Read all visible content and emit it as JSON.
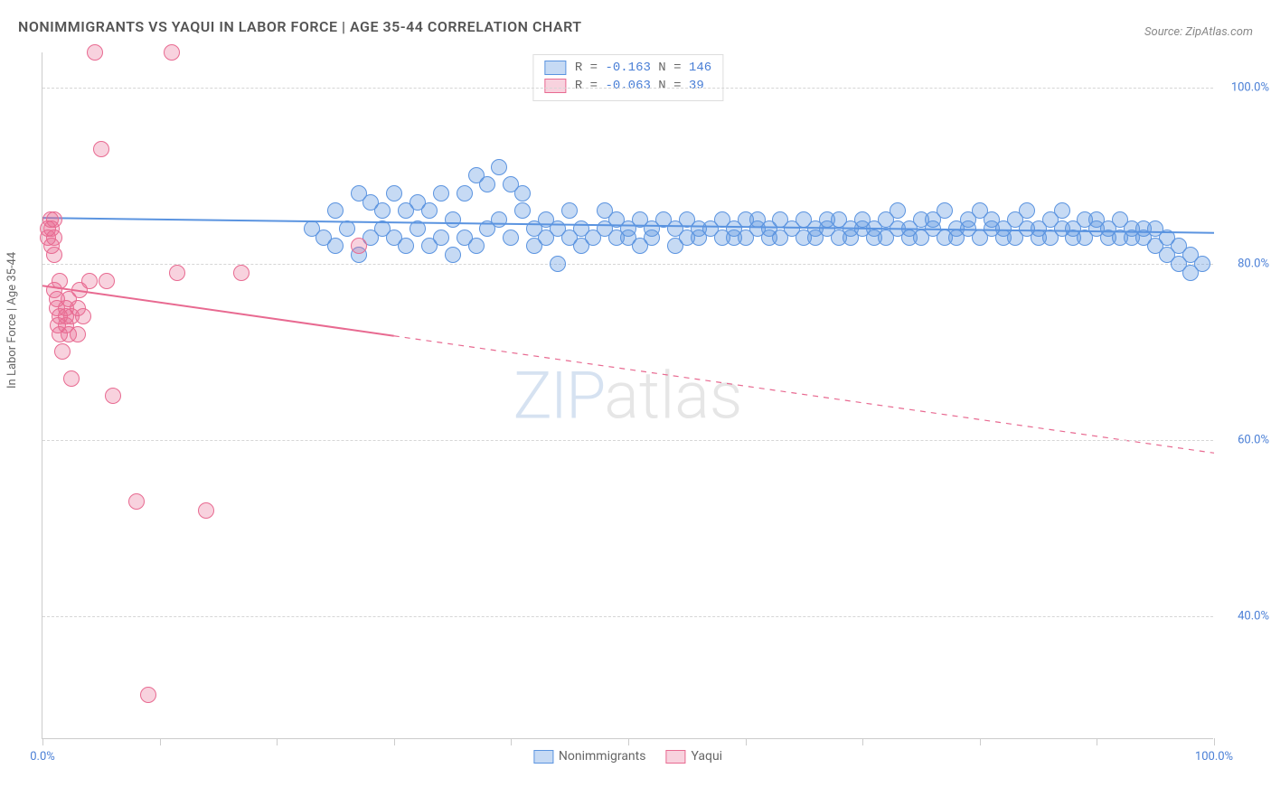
{
  "title": "NONIMMIGRANTS VS YAQUI IN LABOR FORCE | AGE 35-44 CORRELATION CHART",
  "source": "Source: ZipAtlas.com",
  "ylabel": "In Labor Force | Age 35-44",
  "watermark_part1": "ZIP",
  "watermark_part2": "atlas",
  "chart": {
    "type": "scatter",
    "background_color": "#ffffff",
    "grid_color": "#d6d6d6",
    "axis_color": "#cccccc",
    "tick_label_color": "#4a7fd6",
    "label_fontsize": 13,
    "title_fontsize": 16,
    "xlim": [
      0,
      100
    ],
    "ylim": [
      26,
      104
    ],
    "xtick_positions": [
      0,
      10,
      20,
      30,
      40,
      50,
      60,
      70,
      80,
      90,
      100
    ],
    "xtick_labels": {
      "0": "0.0%",
      "100": "100.0%"
    },
    "yticks": [
      {
        "value": 40,
        "label": "40.0%"
      },
      {
        "value": 60,
        "label": "60.0%"
      },
      {
        "value": 80,
        "label": "80.0%"
      },
      {
        "value": 100,
        "label": "100.0%"
      }
    ],
    "marker_radius": 9,
    "marker_stroke_width": 1.5,
    "marker_fill_opacity": 0.35,
    "series": [
      {
        "name": "Nonimmigrants",
        "color": "#5b94e0",
        "fill": "rgba(91,148,224,0.35)",
        "R": "-0.163",
        "N": "146",
        "trend": {
          "x0": 0,
          "y0": 85.2,
          "x1": 100,
          "y1": 83.5,
          "solid_until_x": 100,
          "stroke_width": 2
        },
        "points": [
          [
            23,
            84
          ],
          [
            24,
            83
          ],
          [
            25,
            82
          ],
          [
            25,
            86
          ],
          [
            26,
            84
          ],
          [
            27,
            88
          ],
          [
            27,
            81
          ],
          [
            28,
            87
          ],
          [
            28,
            83
          ],
          [
            29,
            86
          ],
          [
            29,
            84
          ],
          [
            30,
            83
          ],
          [
            30,
            88
          ],
          [
            31,
            86
          ],
          [
            31,
            82
          ],
          [
            32,
            84
          ],
          [
            32,
            87
          ],
          [
            33,
            82
          ],
          [
            33,
            86
          ],
          [
            34,
            83
          ],
          [
            34,
            88
          ],
          [
            35,
            81
          ],
          [
            35,
            85
          ],
          [
            36,
            88
          ],
          [
            36,
            83
          ],
          [
            37,
            82
          ],
          [
            37,
            90
          ],
          [
            38,
            89
          ],
          [
            38,
            84
          ],
          [
            39,
            91
          ],
          [
            39,
            85
          ],
          [
            40,
            89
          ],
          [
            40,
            83
          ],
          [
            41,
            86
          ],
          [
            41,
            88
          ],
          [
            42,
            84
          ],
          [
            42,
            82
          ],
          [
            43,
            85
          ],
          [
            43,
            83
          ],
          [
            44,
            80
          ],
          [
            44,
            84
          ],
          [
            45,
            83
          ],
          [
            45,
            86
          ],
          [
            46,
            84
          ],
          [
            46,
            82
          ],
          [
            47,
            83
          ],
          [
            48,
            84
          ],
          [
            48,
            86
          ],
          [
            49,
            85
          ],
          [
            49,
            83
          ],
          [
            50,
            84
          ],
          [
            50,
            83
          ],
          [
            51,
            85
          ],
          [
            51,
            82
          ],
          [
            52,
            84
          ],
          [
            52,
            83
          ],
          [
            53,
            85
          ],
          [
            54,
            84
          ],
          [
            54,
            82
          ],
          [
            55,
            83
          ],
          [
            55,
            85
          ],
          [
            56,
            84
          ],
          [
            56,
            83
          ],
          [
            57,
            84
          ],
          [
            58,
            83
          ],
          [
            58,
            85
          ],
          [
            59,
            84
          ],
          [
            59,
            83
          ],
          [
            60,
            85
          ],
          [
            60,
            83
          ],
          [
            61,
            84
          ],
          [
            61,
            85
          ],
          [
            62,
            83
          ],
          [
            62,
            84
          ],
          [
            63,
            85
          ],
          [
            63,
            83
          ],
          [
            64,
            84
          ],
          [
            65,
            83
          ],
          [
            65,
            85
          ],
          [
            66,
            84
          ],
          [
            66,
            83
          ],
          [
            67,
            85
          ],
          [
            67,
            84
          ],
          [
            68,
            83
          ],
          [
            68,
            85
          ],
          [
            69,
            84
          ],
          [
            69,
            83
          ],
          [
            70,
            84
          ],
          [
            70,
            85
          ],
          [
            71,
            83
          ],
          [
            71,
            84
          ],
          [
            72,
            85
          ],
          [
            72,
            83
          ],
          [
            73,
            84
          ],
          [
            73,
            86
          ],
          [
            74,
            83
          ],
          [
            74,
            84
          ],
          [
            75,
            85
          ],
          [
            75,
            83
          ],
          [
            76,
            84
          ],
          [
            76,
            85
          ],
          [
            77,
            83
          ],
          [
            77,
            86
          ],
          [
            78,
            84
          ],
          [
            78,
            83
          ],
          [
            79,
            85
          ],
          [
            79,
            84
          ],
          [
            80,
            83
          ],
          [
            80,
            86
          ],
          [
            81,
            84
          ],
          [
            81,
            85
          ],
          [
            82,
            83
          ],
          [
            82,
            84
          ],
          [
            83,
            85
          ],
          [
            83,
            83
          ],
          [
            84,
            84
          ],
          [
            84,
            86
          ],
          [
            85,
            83
          ],
          [
            85,
            84
          ],
          [
            86,
            85
          ],
          [
            86,
            83
          ],
          [
            87,
            84
          ],
          [
            87,
            86
          ],
          [
            88,
            83
          ],
          [
            88,
            84
          ],
          [
            89,
            85
          ],
          [
            89,
            83
          ],
          [
            90,
            84
          ],
          [
            90,
            85
          ],
          [
            91,
            83
          ],
          [
            91,
            84
          ],
          [
            92,
            85
          ],
          [
            92,
            83
          ],
          [
            93,
            84
          ],
          [
            93,
            83
          ],
          [
            94,
            84
          ],
          [
            94,
            83
          ],
          [
            95,
            84
          ],
          [
            95,
            82
          ],
          [
            96,
            83
          ],
          [
            96,
            81
          ],
          [
            97,
            82
          ],
          [
            97,
            80
          ],
          [
            98,
            81
          ],
          [
            98,
            79
          ],
          [
            99,
            80
          ]
        ]
      },
      {
        "name": "Yaqui",
        "color": "#e86a91",
        "fill": "rgba(232,106,145,0.30)",
        "R": "-0.063",
        "N": "39",
        "trend": {
          "x0": 0,
          "y0": 77.5,
          "x1": 100,
          "y1": 58.5,
          "solid_until_x": 30,
          "stroke_width": 2
        },
        "points": [
          [
            0.5,
            84
          ],
          [
            0.5,
            83
          ],
          [
            0.7,
            85
          ],
          [
            0.8,
            82
          ],
          [
            0.8,
            84
          ],
          [
            1,
            83
          ],
          [
            1,
            85
          ],
          [
            1,
            81
          ],
          [
            1,
            77
          ],
          [
            1.2,
            76
          ],
          [
            1.2,
            75
          ],
          [
            1.3,
            73
          ],
          [
            1.5,
            74
          ],
          [
            1.5,
            78
          ],
          [
            1.5,
            72
          ],
          [
            1.7,
            70
          ],
          [
            2,
            74
          ],
          [
            2,
            75
          ],
          [
            2,
            73
          ],
          [
            2.2,
            72
          ],
          [
            2.2,
            76
          ],
          [
            2.5,
            74
          ],
          [
            2.5,
            67
          ],
          [
            3,
            75
          ],
          [
            3,
            72
          ],
          [
            3.2,
            77
          ],
          [
            3.5,
            74
          ],
          [
            4,
            78
          ],
          [
            4.5,
            104
          ],
          [
            5,
            93
          ],
          [
            5.5,
            78
          ],
          [
            6,
            65
          ],
          [
            8,
            53
          ],
          [
            9,
            31
          ],
          [
            11,
            104
          ],
          [
            11.5,
            79
          ],
          [
            14,
            52
          ],
          [
            17,
            79
          ],
          [
            27,
            82
          ]
        ]
      }
    ]
  },
  "legend_top": {
    "rows": [
      {
        "swatch_fill": "rgba(91,148,224,0.35)",
        "swatch_border": "#5b94e0",
        "text_prefix": "R = ",
        "r": "-0.163",
        "n_prefix": "  N = ",
        "n": "146"
      },
      {
        "swatch_fill": "rgba(232,106,145,0.30)",
        "swatch_border": "#e86a91",
        "text_prefix": "R = ",
        "r": "-0.063",
        "n_prefix": "  N = ",
        "n": " 39"
      }
    ]
  },
  "legend_bottom": [
    {
      "swatch_fill": "rgba(91,148,224,0.35)",
      "swatch_border": "#5b94e0",
      "label": "Nonimmigrants"
    },
    {
      "swatch_fill": "rgba(232,106,145,0.30)",
      "swatch_border": "#e86a91",
      "label": "Yaqui"
    }
  ]
}
